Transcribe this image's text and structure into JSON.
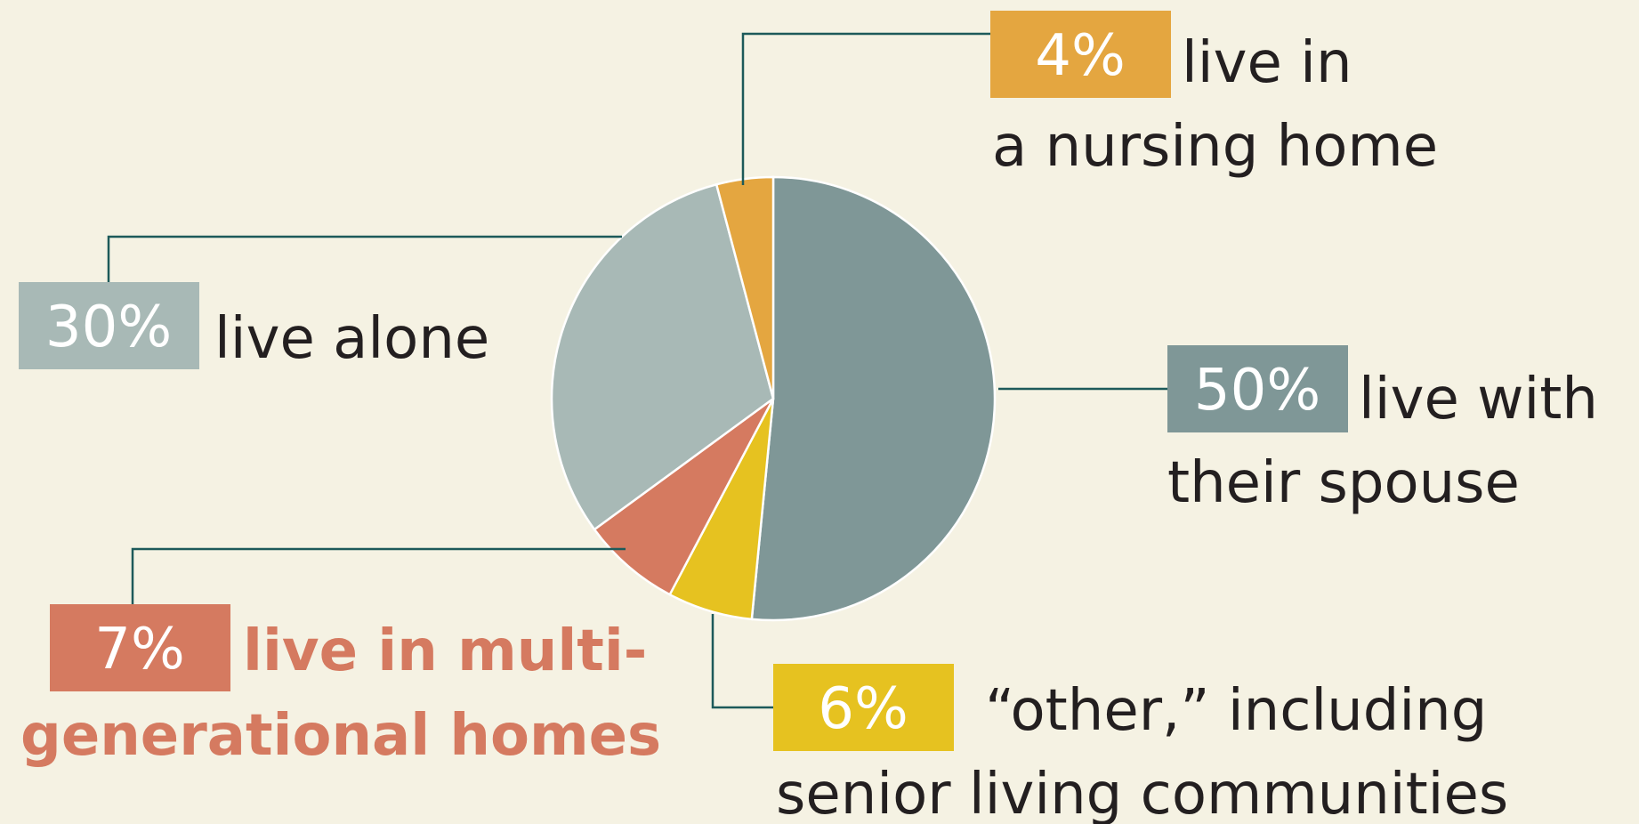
{
  "chart_data": {
    "type": "pie",
    "values": [
      50,
      6,
      7,
      30,
      4
    ],
    "value_labels": [
      "50%",
      "6%",
      "7%",
      "30%",
      "4%"
    ],
    "label_lines": [
      [
        "live with",
        "their spouse"
      ],
      [
        "“other,” including",
        "senior living communities"
      ],
      [
        "live in multi-",
        "generational homes"
      ],
      [
        "live alone"
      ],
      [
        "live in",
        "a nursing home"
      ]
    ],
    "colors": [
      "#7f9797",
      "#e6c220",
      "#d57a60",
      "#a8b9b6",
      "#e4a640"
    ]
  }
}
